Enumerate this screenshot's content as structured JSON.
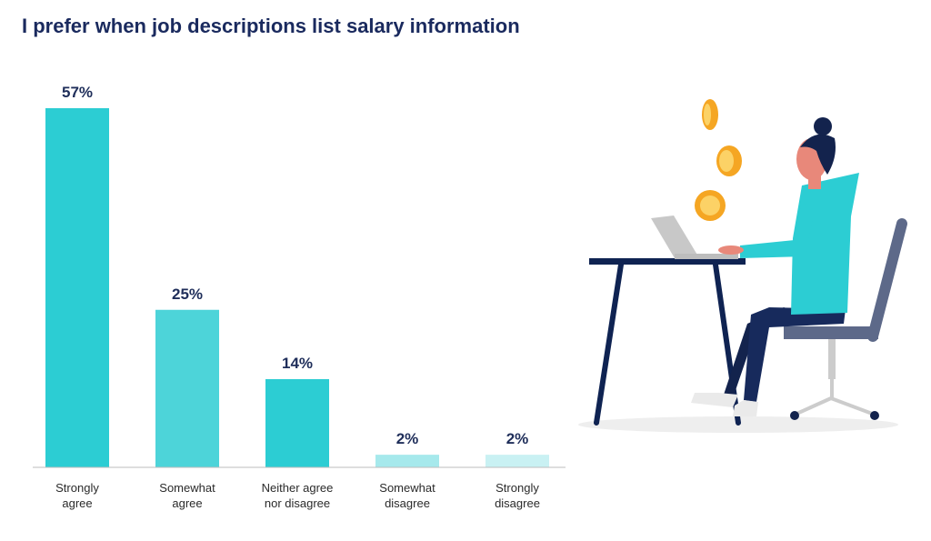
{
  "chart_data": {
    "type": "bar",
    "title": "I prefer when job descriptions list salary information",
    "categories": [
      "Strongly agree",
      "Somewhat agree",
      "Neither agree nor disagree",
      "Somewhat disagree",
      "Strongly disagree"
    ],
    "category_lines": [
      [
        "Strongly",
        "agree"
      ],
      [
        "Somewhat",
        "agree"
      ],
      [
        "Neither agree",
        "nor disagree"
      ],
      [
        "Somewhat",
        "disagree"
      ],
      [
        "Strongly",
        "disagree"
      ]
    ],
    "values": [
      57,
      25,
      14,
      2,
      2
    ],
    "value_labels": [
      "57%",
      "25%",
      "14%",
      "2%",
      "2%"
    ],
    "bar_colors": [
      "#2ccdd3",
      "#4dd4d9",
      "#2ccdd3",
      "#a6e9ec",
      "#c9f1f3"
    ],
    "ylim": [
      0,
      57
    ],
    "grid": false,
    "xlabel": "",
    "ylabel": ""
  },
  "colors": {
    "title": "#1a2a5e",
    "axis": "#bdbdbd",
    "desk": "#0f2352",
    "chair": "#5d6989",
    "hoodie": "#2ccdd3",
    "pants": "#13234d",
    "hair": "#13234d",
    "skin": "#e8887a",
    "coin": "#f5a623",
    "coin_light": "#fcd266",
    "laptop": "#c8c8c8",
    "floor": "#eeeeee"
  }
}
